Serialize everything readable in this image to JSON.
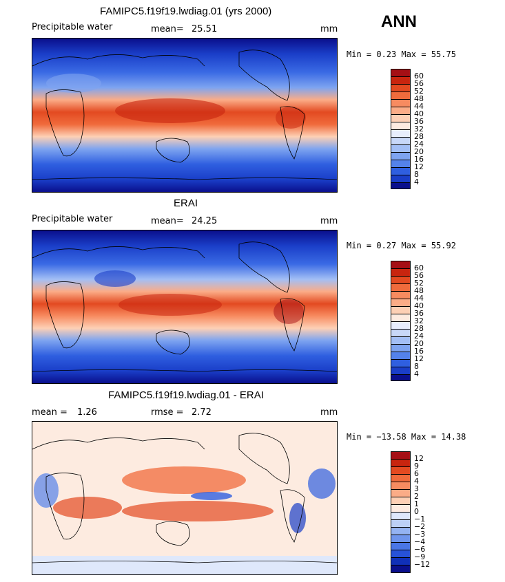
{
  "season": "ANN",
  "units": "mm",
  "panel1": {
    "title": "FAMIPC5.f19f19.lwdiag.01 (yrs 2000)",
    "variable": "Precipitable water",
    "mean_label": "mean=",
    "mean_value": "25.51",
    "range_text": "Min =   0.23 Max =  55.75"
  },
  "panel2": {
    "title": "ERAI",
    "variable": "Precipitable water",
    "mean_label": "mean=",
    "mean_value": "24.25",
    "range_text": "Min =   0.27 Max =  55.92"
  },
  "panel3": {
    "title": "FAMIPC5.f19f19.lwdiag.01 - ERAI",
    "mean_label": "mean =",
    "mean_value": "1.26",
    "rmse_label": "rmse =",
    "rmse_value": "2.72",
    "range_text": "Min = −13.58 Max =  14.38"
  },
  "colorbar_field": {
    "levels": [
      "60",
      "56",
      "52",
      "48",
      "44",
      "40",
      "36",
      "32",
      "28",
      "24",
      "20",
      "16",
      "12",
      "8",
      "4"
    ],
    "colors": [
      "#a50f15",
      "#c8250f",
      "#e34a21",
      "#f06b3c",
      "#f78b60",
      "#fbac87",
      "#fdd0b5",
      "#fdebe0",
      "#e8eefc",
      "#c8d8f8",
      "#a3bff5",
      "#7ea4f0",
      "#5482ea",
      "#2f5fe0",
      "#1a3ec8",
      "#0a0f8c"
    ]
  },
  "colorbar_diff": {
    "levels": [
      "12",
      "9",
      "6",
      "4",
      "3",
      "2",
      "1",
      "0",
      "−1",
      "−2",
      "−3",
      "−4",
      "−6",
      "−9",
      "−12"
    ],
    "colors": [
      "#a50f15",
      "#c8250f",
      "#e34a21",
      "#f06b3c",
      "#f78b60",
      "#fbac87",
      "#fdd0b5",
      "#fdebe0",
      "#dfe8fb",
      "#bcd0f6",
      "#94b3f2",
      "#6f95ec",
      "#4a76e6",
      "#2752d8",
      "#1030b8",
      "#0a0f8c"
    ]
  }
}
